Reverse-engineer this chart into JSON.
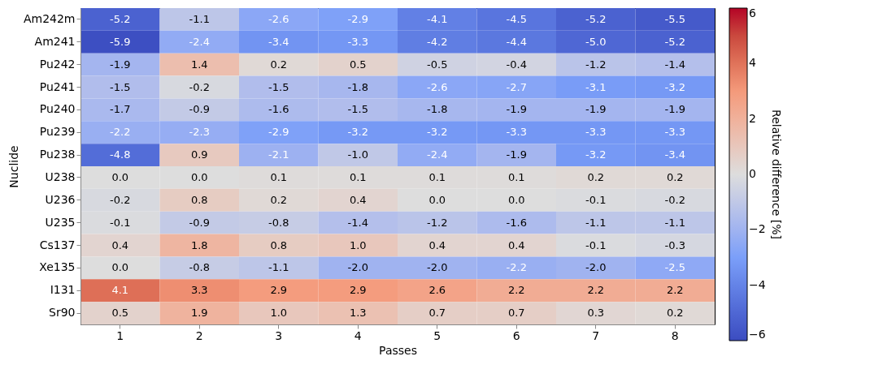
{
  "chart_data": {
    "type": "heatmap",
    "xlabel": "Passes",
    "ylabel": "Nuclide",
    "clabel": "Relative difference [%]",
    "categories": [
      "1",
      "2",
      "3",
      "4",
      "5",
      "6",
      "7",
      "8"
    ],
    "y_categories": [
      "Am242m",
      "Am241",
      "Pu242",
      "Pu241",
      "Pu240",
      "Pu239",
      "Pu238",
      "U238",
      "U236",
      "U235",
      "Cs137",
      "Xe135",
      "I131",
      "Sr90"
    ],
    "cells": [
      [
        -5.2,
        -1.1,
        -2.6,
        -2.9,
        -4.1,
        -4.5,
        -5.2,
        -5.5
      ],
      [
        -5.9,
        -2.4,
        -3.4,
        -3.3,
        -4.2,
        -4.4,
        -5.0,
        -5.2
      ],
      [
        -1.9,
        1.4,
        0.2,
        0.5,
        -0.5,
        -0.4,
        -1.2,
        -1.4
      ],
      [
        -1.5,
        -0.2,
        -1.5,
        -1.8,
        -2.6,
        -2.7,
        -3.1,
        -3.2
      ],
      [
        -1.7,
        -0.9,
        -1.6,
        -1.5,
        -1.8,
        -1.9,
        -1.9,
        -1.9
      ],
      [
        -2.2,
        -2.3,
        -2.9,
        -3.2,
        -3.2,
        -3.3,
        -3.3,
        -3.3
      ],
      [
        -4.8,
        0.9,
        -2.1,
        -1.0,
        -2.4,
        -1.9,
        -3.2,
        -3.4
      ],
      [
        0.0,
        0.0,
        0.1,
        0.1,
        0.1,
        0.1,
        0.2,
        0.2
      ],
      [
        -0.2,
        0.8,
        0.2,
        0.4,
        0.0,
        0.0,
        -0.1,
        -0.2
      ],
      [
        -0.1,
        -0.9,
        -0.8,
        -1.4,
        -1.2,
        -1.6,
        -1.1,
        -1.1
      ],
      [
        0.4,
        1.8,
        0.8,
        1.0,
        0.4,
        0.4,
        -0.1,
        -0.3
      ],
      [
        0.0,
        -0.8,
        -1.1,
        -2.0,
        -2.0,
        -2.2,
        -2.0,
        -2.5
      ],
      [
        4.1,
        3.3,
        2.9,
        2.9,
        2.6,
        2.2,
        2.2,
        2.2
      ],
      [
        0.5,
        1.9,
        1.0,
        1.3,
        0.7,
        0.7,
        0.3,
        0.2
      ]
    ],
    "cell_labels": [
      [
        "-5.2",
        "-1.1",
        "-2.6",
        "-2.9",
        "-4.1",
        "-4.5",
        "-5.2",
        "-5.5"
      ],
      [
        "-5.9",
        "-2.4",
        "-3.4",
        "-3.3",
        "-4.2",
        "-4.4",
        "-5.0",
        "-5.2"
      ],
      [
        "-1.9",
        "1.4",
        "0.2",
        "0.5",
        "-0.5",
        "-0.4",
        "-1.2",
        "-1.4"
      ],
      [
        "-1.5",
        "-0.2",
        "-1.5",
        "-1.8",
        "-2.6",
        "-2.7",
        "-3.1",
        "-3.2"
      ],
      [
        "-1.7",
        "-0.9",
        "-1.6",
        "-1.5",
        "-1.8",
        "-1.9",
        "-1.9",
        "-1.9"
      ],
      [
        "-2.2",
        "-2.3",
        "-2.9",
        "-3.2",
        "-3.2",
        "-3.3",
        "-3.3",
        "-3.3"
      ],
      [
        "-4.8",
        "0.9",
        "-2.1",
        "-1.0",
        "-2.4",
        "-1.9",
        "-3.2",
        "-3.4"
      ],
      [
        "0.0",
        "0.0",
        "0.1",
        "0.1",
        "0.1",
        "0.1",
        "0.2",
        "0.2"
      ],
      [
        "-0.2",
        "0.8",
        "0.2",
        "0.4",
        "0.0",
        "0.0",
        "-0.1",
        "-0.2"
      ],
      [
        "-0.1",
        "-0.9",
        "-0.8",
        "-1.4",
        "-1.2",
        "-1.6",
        "-1.1",
        "-1.1"
      ],
      [
        "0.4",
        "1.8",
        "0.8",
        "1.0",
        "0.4",
        "0.4",
        "-0.1",
        "-0.3"
      ],
      [
        "0.0",
        "-0.8",
        "-1.1",
        "-2.0",
        "-2.0",
        "-2.2",
        "-2.0",
        "-2.5"
      ],
      [
        "4.1",
        "3.3",
        "2.9",
        "2.9",
        "2.6",
        "2.2",
        "2.2",
        "2.2"
      ],
      [
        "0.5",
        "1.9",
        "1.0",
        "1.3",
        "0.7",
        "0.7",
        "0.3",
        "0.2"
      ]
    ],
    "clim": [
      -6,
      6
    ],
    "cticks": [
      {
        "value": -6,
        "label": "−6"
      },
      {
        "value": -4,
        "label": "−4"
      },
      {
        "value": -2,
        "label": "−2"
      },
      0,
      2,
      4,
      6
    ]
  }
}
